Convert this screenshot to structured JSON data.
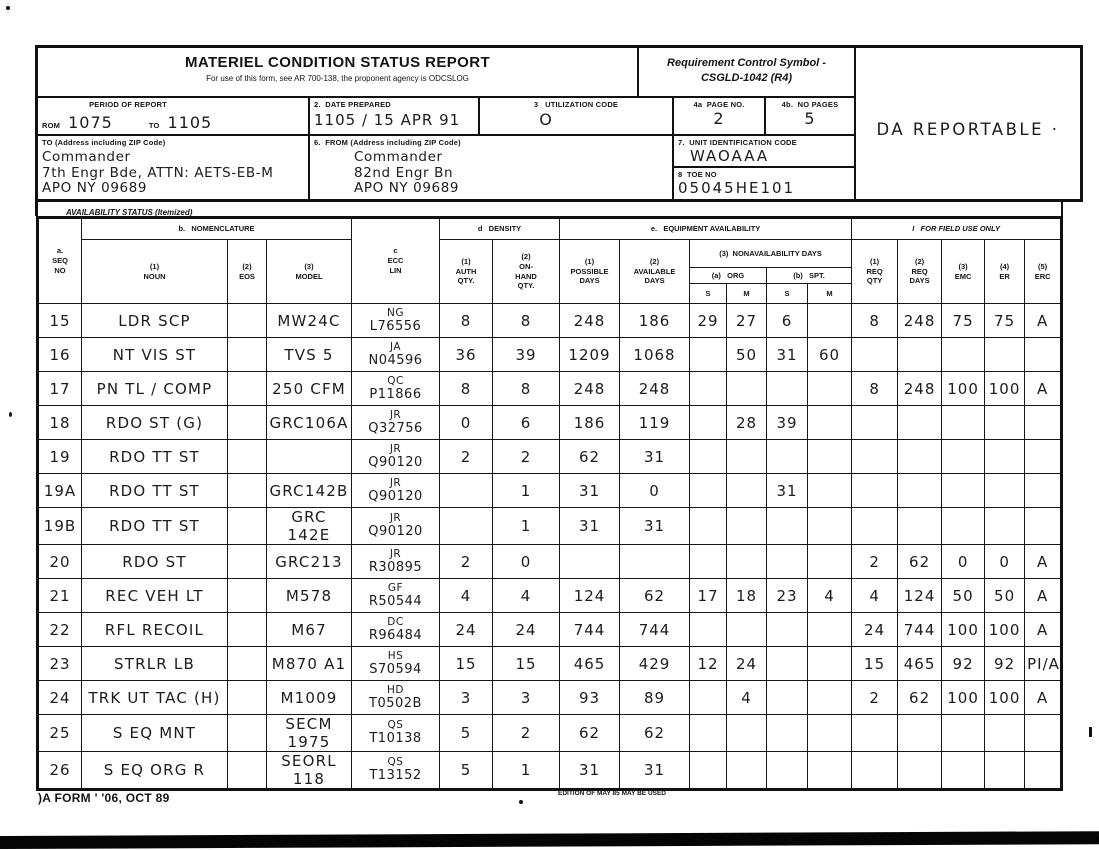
{
  "form": {
    "title": "MATERIEL CONDITION STATUS REPORT",
    "subtitle": "For use of this form, see AR 700-138, the proponent agency is ODCSLOG",
    "rcs_label": "Requirement Control Symbol -",
    "rcs_value": "CSGLD-1042 (R4)",
    "da_reportable": "DA REPORTABLE ·",
    "period": {
      "label": "PERIOD OF REPORT",
      "from_label": "ROM",
      "from_value": "1075",
      "to_label": "TO",
      "to_value": "1105"
    },
    "date_prepared": {
      "label": "2.  DATE PREPARED",
      "value": "1105 / 15 APR 91"
    },
    "utilization": {
      "label": "3   UTILIZATION CODE",
      "value": "O"
    },
    "page_no": {
      "label": "4a  PAGE NO.",
      "value": "2"
    },
    "no_pages": {
      "label": "4b.  NO PAGES",
      "value": "5"
    },
    "to_block": {
      "label": "TO (Address including ZIP Code)",
      "lines": [
        "Commander",
        "7th Engr Bde, ATTN: AETS-EB-M",
        "APO NY 09689"
      ]
    },
    "from_block": {
      "label": "6.  FROM (Address including ZIP Code)",
      "lines": [
        "Commander",
        "82nd Engr Bn",
        "APO NY 09689"
      ]
    },
    "uic": {
      "label": "7.  UNIT IDENTIFICATION CODE",
      "value": "WAOAAA"
    },
    "toe": {
      "label": "8  TOE NO",
      "value": "05045HE101"
    },
    "availability_band": "AVAILABILITY STATUS (Itemized)"
  },
  "table": {
    "column_order": [
      "seq",
      "noun",
      "eos",
      "model",
      "ecc",
      "auth_qty",
      "on_hand_qty",
      "possible_days",
      "available_days",
      "org_s",
      "org_m",
      "spt_s",
      "spt_m",
      "req_qty",
      "req_days",
      "emc",
      "er",
      "erc"
    ],
    "headers": {
      "seq": "a.\nSEQ\nNO",
      "nomenclature": "b.   NOMENCLATURE",
      "ecc": "c\nECC\nLIN",
      "density": "d   DENSITY",
      "equipment_availability": "e.   EQUIPMENT AVAILABILITY",
      "field_use": "I   FOR FIELD USE ONLY",
      "noun": "(1)\nNOUN",
      "eos": "(2)\nEOS",
      "model": "(3)\nMODEL",
      "auth_qty": "(1)\nAUTH\nQTY.",
      "on_hand_qty": "(2)\nON-\nHAND\nQTY.",
      "possible_days": "(1)\nPOSSIBLE\nDAYS",
      "available_days": "(2)\nAVAILABLE\nDAYS",
      "nonavailability": "(3)  NONAVAILABILITY DAYS",
      "org": "(a)   ORG",
      "spt": "(b)   SPT.",
      "s1": "S",
      "m1": "M",
      "s2": "S",
      "m2": "M",
      "req_qty": "(1)\nREQ\nQTY",
      "req_days": "(2)\nREQ\nDAYS",
      "emc": "(3)\nEMC",
      "er": "(4)\nER",
      "erc": "(5)\nERC"
    },
    "rows": [
      {
        "seq": "15",
        "noun": "LDR SCP",
        "eos": "",
        "model": "MW24C",
        "ecc": "NG",
        "lin": "L76556",
        "auth_qty": "8",
        "on_hand_qty": "8",
        "possible_days": "248",
        "available_days": "186",
        "org_s": "29",
        "org_m": "27",
        "spt_s": "6",
        "spt_m": "",
        "req_qty": "8",
        "req_days": "248",
        "emc": "75",
        "er": "75",
        "erc": "A"
      },
      {
        "seq": "16",
        "noun": "NT VIS ST",
        "eos": "",
        "model": "TVS 5",
        "ecc": "JA",
        "lin": "N04596",
        "auth_qty": "36",
        "on_hand_qty": "39",
        "possible_days": "1209",
        "available_days": "1068",
        "org_s": "",
        "org_m": "50",
        "spt_s": "31",
        "spt_m": "60",
        "req_qty": "",
        "req_days": "",
        "emc": "",
        "er": "",
        "erc": ""
      },
      {
        "seq": "17",
        "noun": "PN TL / COMP",
        "eos": "",
        "model": "250 CFM",
        "ecc": "QC",
        "lin": "P11866",
        "auth_qty": "8",
        "on_hand_qty": "8",
        "possible_days": "248",
        "available_days": "248",
        "org_s": "",
        "org_m": "",
        "spt_s": "",
        "spt_m": "",
        "req_qty": "8",
        "req_days": "248",
        "emc": "100",
        "er": "100",
        "erc": "A"
      },
      {
        "seq": "18",
        "noun": "RDO ST (G)",
        "eos": "",
        "model": "GRC106A",
        "ecc": "JR",
        "lin": "Q32756",
        "auth_qty": "0",
        "on_hand_qty": "6",
        "possible_days": "186",
        "available_days": "119",
        "org_s": "",
        "org_m": "28",
        "spt_s": "39",
        "spt_m": "",
        "req_qty": "",
        "req_days": "",
        "emc": "",
        "er": "",
        "erc": ""
      },
      {
        "seq": "19",
        "noun": "RDO TT ST",
        "eos": "",
        "model": "",
        "ecc": "JR",
        "lin": "Q90120",
        "auth_qty": "2",
        "on_hand_qty": "2",
        "possible_days": "62",
        "available_days": "31",
        "org_s": "",
        "org_m": "",
        "spt_s": "",
        "spt_m": "",
        "req_qty": "",
        "req_days": "",
        "emc": "",
        "er": "",
        "erc": ""
      },
      {
        "seq": "19A",
        "noun": "RDO TT ST",
        "eos": "",
        "model": "GRC142B",
        "ecc": "JR",
        "lin": "Q90120",
        "auth_qty": "",
        "on_hand_qty": "1",
        "possible_days": "31",
        "available_days": "0",
        "org_s": "",
        "org_m": "",
        "spt_s": "31",
        "spt_m": "",
        "req_qty": "",
        "req_days": "",
        "emc": "",
        "er": "",
        "erc": ""
      },
      {
        "seq": "19B",
        "noun": "RDO TT ST",
        "eos": "",
        "model": "GRC 142E",
        "ecc": "JR",
        "lin": "Q90120",
        "auth_qty": "",
        "on_hand_qty": "1",
        "possible_days": "31",
        "available_days": "31",
        "org_s": "",
        "org_m": "",
        "spt_s": "",
        "spt_m": "",
        "req_qty": "",
        "req_days": "",
        "emc": "",
        "er": "",
        "erc": ""
      },
      {
        "seq": "20",
        "noun": "RDO ST",
        "eos": "",
        "model": "GRC213",
        "ecc": "JR",
        "lin": "R30895",
        "auth_qty": "2",
        "on_hand_qty": "0",
        "possible_days": "",
        "available_days": "",
        "org_s": "",
        "org_m": "",
        "spt_s": "",
        "spt_m": "",
        "req_qty": "2",
        "req_days": "62",
        "emc": "0",
        "er": "0",
        "erc": "A"
      },
      {
        "seq": "21",
        "noun": "REC VEH LT",
        "eos": "",
        "model": "M578",
        "ecc": "GF",
        "lin": "R50544",
        "auth_qty": "4",
        "on_hand_qty": "4",
        "possible_days": "124",
        "available_days": "62",
        "org_s": "17",
        "org_m": "18",
        "spt_s": "23",
        "spt_m": "4",
        "req_qty": "4",
        "req_days": "124",
        "emc": "50",
        "er": "50",
        "erc": "A"
      },
      {
        "seq": "22",
        "noun": "RFL RECOIL",
        "eos": "",
        "model": "M67",
        "ecc": "DC",
        "lin": "R96484",
        "auth_qty": "24",
        "on_hand_qty": "24",
        "possible_days": "744",
        "available_days": "744",
        "org_s": "",
        "org_m": "",
        "spt_s": "",
        "spt_m": "",
        "req_qty": "24",
        "req_days": "744",
        "emc": "100",
        "er": "100",
        "erc": "A"
      },
      {
        "seq": "23",
        "noun": "STRLR LB",
        "eos": "",
        "model": "M870 A1",
        "ecc": "HS",
        "lin": "S70594",
        "auth_qty": "15",
        "on_hand_qty": "15",
        "possible_days": "465",
        "available_days": "429",
        "org_s": "12",
        "org_m": "24",
        "spt_s": "",
        "spt_m": "",
        "req_qty": "15",
        "req_days": "465",
        "emc": "92",
        "er": "92",
        "erc": "PI/A"
      },
      {
        "seq": "24",
        "noun": "TRK UT TAC (H)",
        "eos": "",
        "model": "M1009",
        "ecc": "HD",
        "lin": "T0502B",
        "auth_qty": "3",
        "on_hand_qty": "3",
        "possible_days": "93",
        "available_days": "89",
        "org_s": "",
        "org_m": "4",
        "spt_s": "",
        "spt_m": "",
        "req_qty": "2",
        "req_days": "62",
        "emc": "100",
        "er": "100",
        "erc": "A"
      },
      {
        "seq": "25",
        "noun": "S EQ MNT",
        "eos": "",
        "model": "SECM 1975",
        "ecc": "QS",
        "lin": "T10138",
        "auth_qty": "5",
        "on_hand_qty": "2",
        "possible_days": "62",
        "available_days": "62",
        "org_s": "",
        "org_m": "",
        "spt_s": "",
        "spt_m": "",
        "req_qty": "",
        "req_days": "",
        "emc": "",
        "er": "",
        "erc": ""
      },
      {
        "seq": "26",
        "noun": "S EQ ORG R",
        "eos": "",
        "model": "SEORL 118",
        "ecc": "QS",
        "lin": "T13152",
        "auth_qty": "5",
        "on_hand_qty": "1",
        "possible_days": "31",
        "available_days": "31",
        "org_s": "",
        "org_m": "",
        "spt_s": "",
        "spt_m": "",
        "req_qty": "",
        "req_days": "",
        "emc": "",
        "er": "",
        "erc": ""
      }
    ]
  },
  "footer": {
    "form_id": ")A FORM ' '06, OCT 89",
    "edition": "EDITION OF MAY 85 MAY BE USED"
  }
}
